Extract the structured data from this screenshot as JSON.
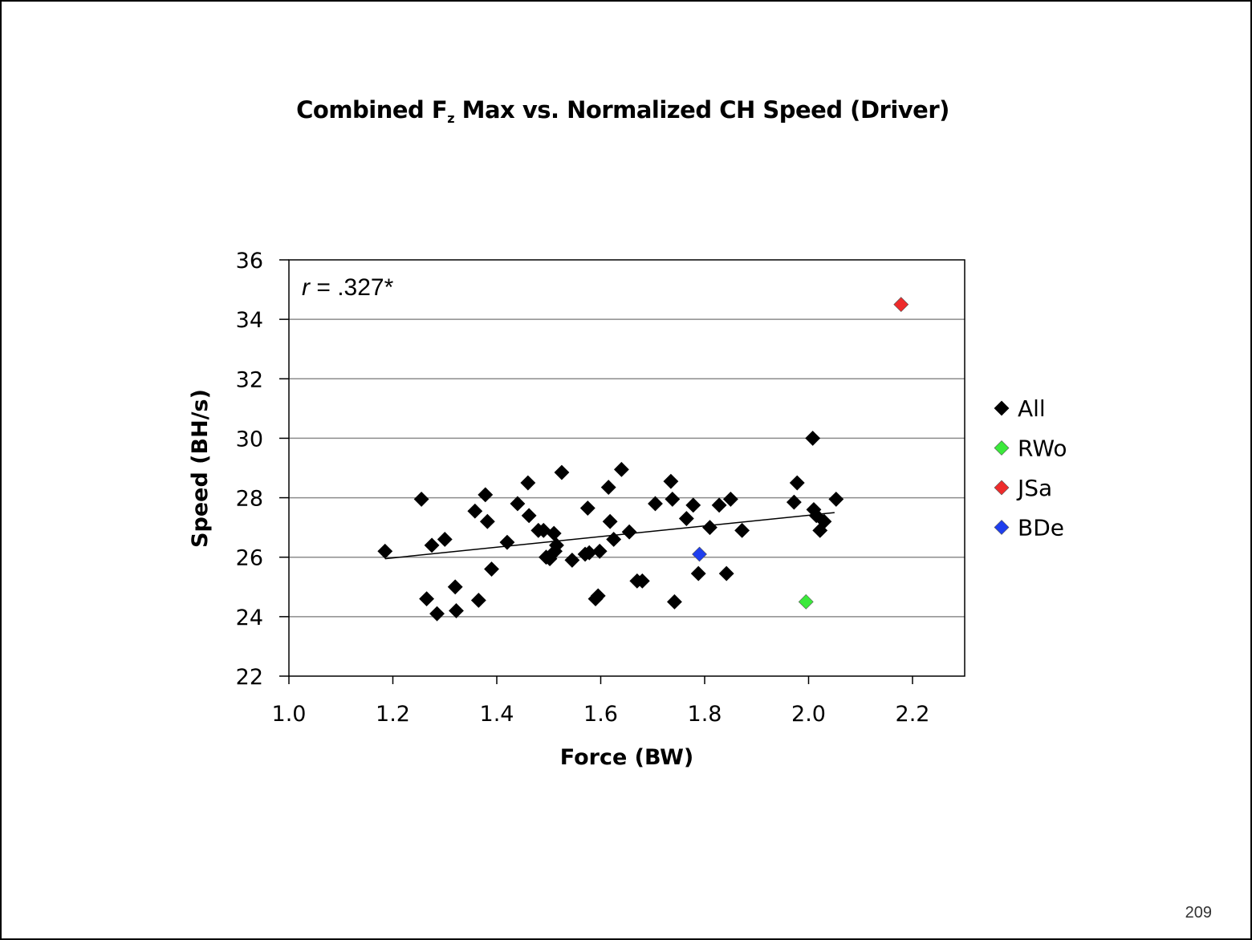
{
  "slide": {
    "title_main": "Combined F",
    "title_sub": "z",
    "title_rest": " Max vs. Normalized CH Speed (Driver)",
    "page_number": "209"
  },
  "chart_data": {
    "type": "scatter",
    "title": "Combined Fz Max vs. Normalized CH Speed (Driver)",
    "xlabel": "Force (BW)",
    "ylabel": "Speed (BH/s)",
    "xlim": [
      1.0,
      2.3
    ],
    "ylim": [
      22,
      36
    ],
    "xticks": [
      1.0,
      1.2,
      1.4,
      1.6,
      1.8,
      2.0,
      2.2
    ],
    "xtick_labels": [
      "1.0",
      "1.2",
      "1.4",
      "1.6",
      "1.8",
      "2.0",
      "2.2"
    ],
    "yticks": [
      22,
      24,
      26,
      28,
      30,
      32,
      34,
      36
    ],
    "ytick_labels": [
      "22",
      "24",
      "26",
      "28",
      "30",
      "32",
      "34",
      "36"
    ],
    "grid": "horizontal",
    "legend_position": "right",
    "annotation": {
      "r_symbol": "r",
      "text": " = .327*"
    },
    "trendline": {
      "x": [
        1.185,
        2.05
      ],
      "y": [
        25.95,
        27.5
      ]
    },
    "series": [
      {
        "name": "All",
        "color": "#000000",
        "marker": "diamond",
        "points": [
          [
            1.185,
            26.2
          ],
          [
            1.255,
            27.95
          ],
          [
            1.265,
            24.6
          ],
          [
            1.275,
            26.4
          ],
          [
            1.285,
            24.1
          ],
          [
            1.3,
            26.6
          ],
          [
            1.32,
            25.0
          ],
          [
            1.322,
            24.2
          ],
          [
            1.358,
            27.55
          ],
          [
            1.365,
            24.55
          ],
          [
            1.378,
            28.1
          ],
          [
            1.382,
            27.2
          ],
          [
            1.39,
            25.6
          ],
          [
            1.42,
            26.5
          ],
          [
            1.44,
            27.8
          ],
          [
            1.46,
            28.5
          ],
          [
            1.462,
            27.4
          ],
          [
            1.48,
            26.9
          ],
          [
            1.49,
            26.9
          ],
          [
            1.495,
            26.0
          ],
          [
            1.502,
            25.95
          ],
          [
            1.51,
            26.8
          ],
          [
            1.512,
            26.2
          ],
          [
            1.515,
            26.4
          ],
          [
            1.525,
            28.85
          ],
          [
            1.545,
            25.9
          ],
          [
            1.57,
            26.1
          ],
          [
            1.575,
            27.65
          ],
          [
            1.578,
            26.15
          ],
          [
            1.59,
            24.6
          ],
          [
            1.595,
            24.7
          ],
          [
            1.598,
            26.2
          ],
          [
            1.615,
            28.35
          ],
          [
            1.618,
            27.2
          ],
          [
            1.625,
            26.6
          ],
          [
            1.64,
            28.95
          ],
          [
            1.655,
            26.85
          ],
          [
            1.67,
            25.2
          ],
          [
            1.68,
            25.2
          ],
          [
            1.705,
            27.8
          ],
          [
            1.735,
            28.55
          ],
          [
            1.738,
            27.95
          ],
          [
            1.742,
            24.5
          ],
          [
            1.765,
            27.3
          ],
          [
            1.778,
            27.75
          ],
          [
            1.788,
            25.45
          ],
          [
            1.81,
            27.0
          ],
          [
            1.828,
            27.75
          ],
          [
            1.842,
            25.45
          ],
          [
            1.85,
            27.95
          ],
          [
            1.872,
            26.9
          ],
          [
            1.972,
            27.85
          ],
          [
            1.978,
            28.5
          ],
          [
            2.008,
            30.0
          ],
          [
            2.01,
            27.6
          ],
          [
            2.015,
            27.4
          ],
          [
            2.022,
            26.9
          ],
          [
            2.03,
            27.2
          ],
          [
            2.053,
            27.95
          ]
        ]
      },
      {
        "name": "RWo",
        "color": "#3be93b",
        "marker": "diamond",
        "points": [
          [
            1.995,
            24.5
          ]
        ]
      },
      {
        "name": "JSa",
        "color": "#ee2b2b",
        "marker": "diamond",
        "points": [
          [
            2.178,
            34.5
          ]
        ]
      },
      {
        "name": "BDe",
        "color": "#1f3fee",
        "marker": "diamond",
        "points": [
          [
            1.79,
            26.1
          ]
        ]
      }
    ]
  }
}
